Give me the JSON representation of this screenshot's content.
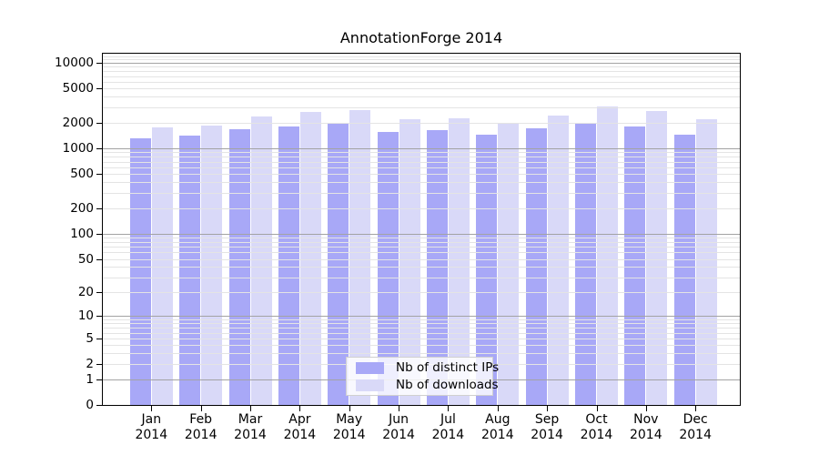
{
  "title": "AnnotationForge 2014",
  "chart_data": {
    "type": "bar",
    "title": "AnnotationForge 2014",
    "x_categories": [
      "Jan",
      "Feb",
      "Mar",
      "Apr",
      "May",
      "Jun",
      "Jul",
      "Aug",
      "Sep",
      "Oct",
      "Nov",
      "Dec"
    ],
    "x_year": "2014",
    "series": [
      {
        "name": "Nb of distinct IPs",
        "color": "#a8a8f7",
        "values": [
          1320,
          1410,
          1690,
          1800,
          1940,
          1550,
          1640,
          1430,
          1730,
          1990,
          1790,
          1460
        ]
      },
      {
        "name": "Nb of downloads",
        "color": "#d9d9f8",
        "values": [
          1760,
          1860,
          2340,
          2680,
          2800,
          2210,
          2240,
          1940,
          2390,
          3100,
          2730,
          2210
        ]
      }
    ],
    "y_scale": "log10(value+1)",
    "y_ticks": [
      0,
      1,
      2,
      5,
      10,
      20,
      50,
      100,
      200,
      500,
      1000,
      2000,
      5000,
      10000
    ],
    "ylim": [
      0,
      12700
    ],
    "grid": "horizontal minor lines at 1-9 per decade, darker at powers of 10",
    "legend_position": "bottom-center"
  },
  "colors": {
    "bar_dark": "#a8a8f7",
    "bar_light": "#d9d9f8",
    "grid_minor": "#e4e4e4",
    "grid_major": "#a3a3a3",
    "axis": "#000000",
    "legend_border": "#d0d0d0",
    "background": "#ffffff"
  }
}
